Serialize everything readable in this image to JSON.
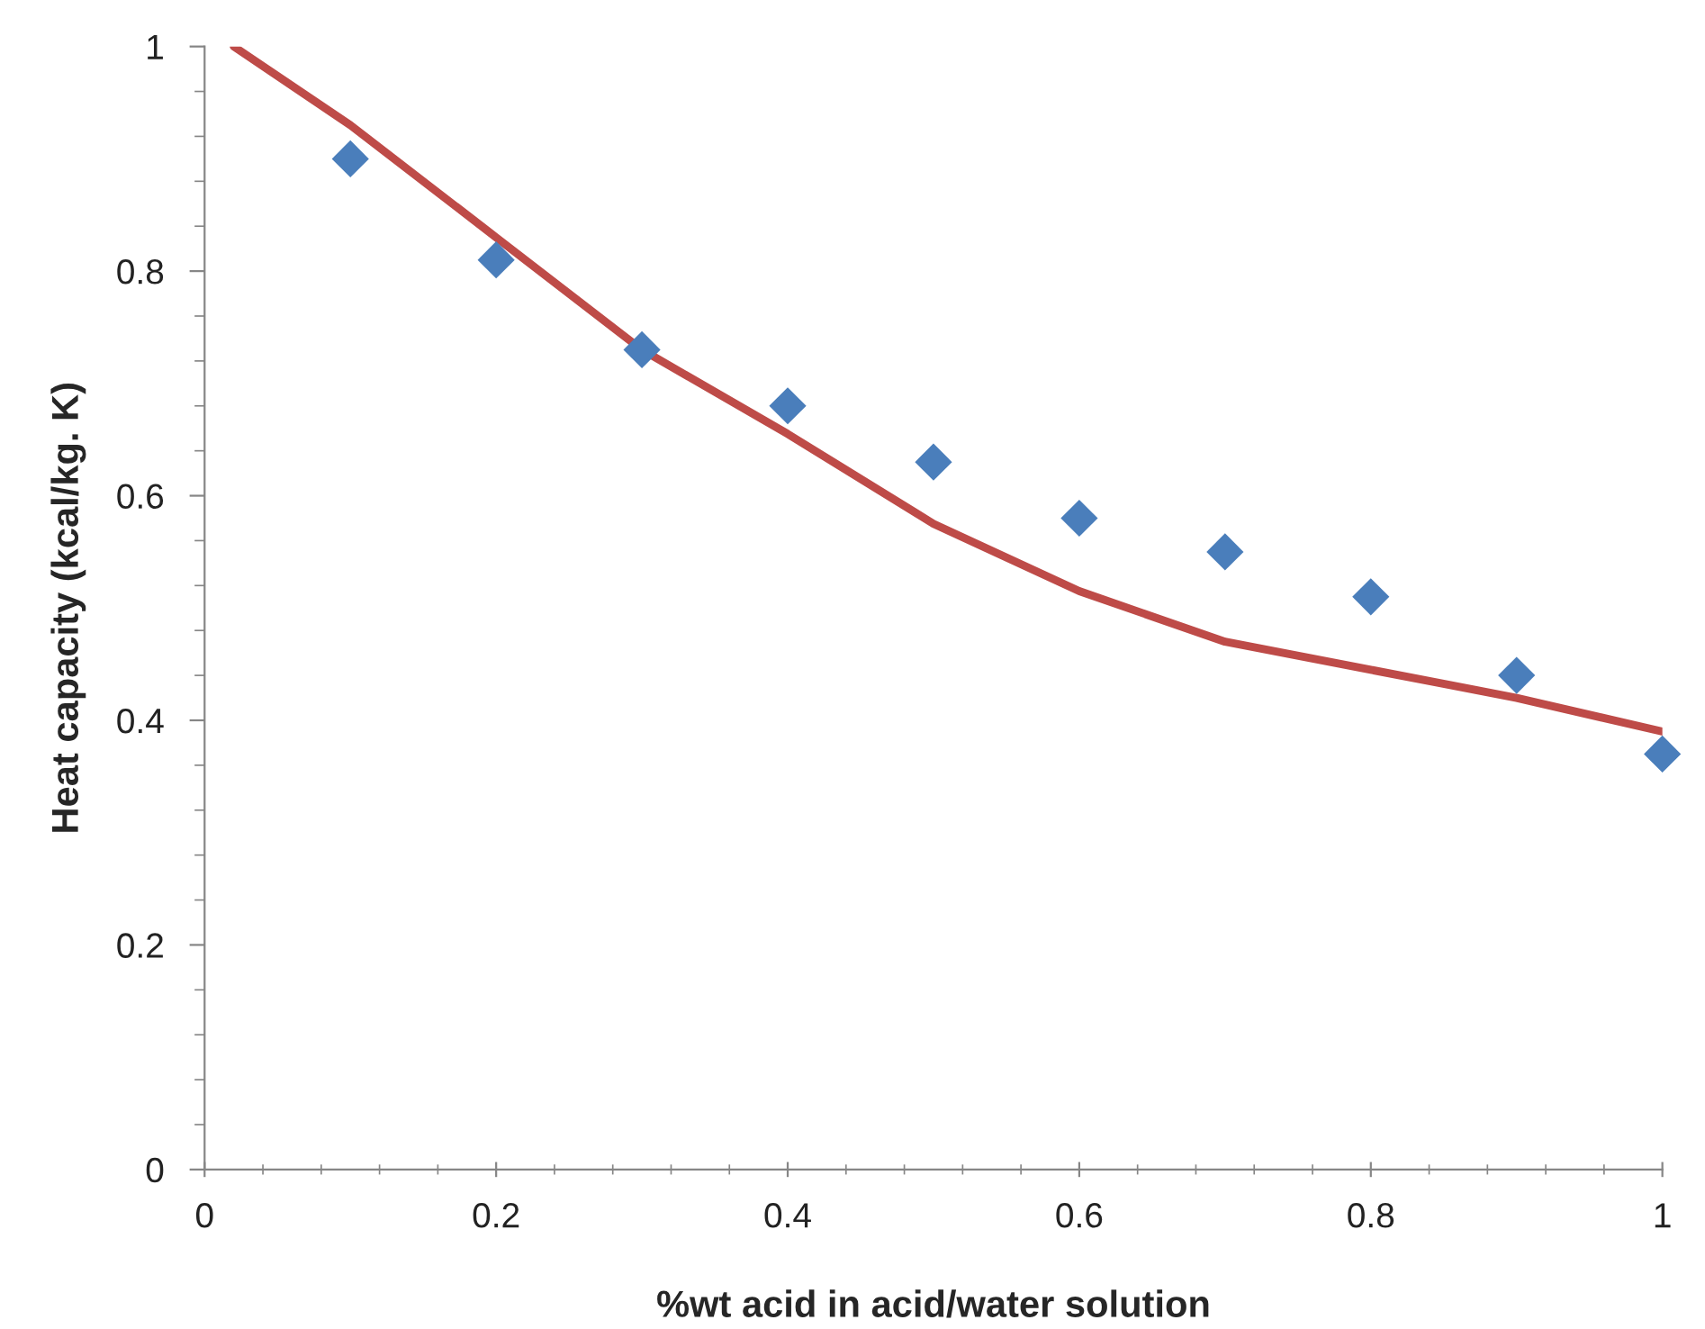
{
  "chart_data": {
    "type": "scatter",
    "xlabel": "%wt acid in acid/water solution",
    "ylabel": "Heat capacity (kcal/kg. K)",
    "series": [
      {
        "color": "#4a7ebb",
        "marker": "diamond",
        "x": [
          0.1,
          0.2,
          0.3,
          0.4,
          0.5,
          0.6,
          0.7,
          0.8,
          0.9,
          1.0
        ],
        "values": [
          0.9,
          0.81,
          0.73,
          0.68,
          0.63,
          0.58,
          0.55,
          0.51,
          0.44,
          0.37
        ]
      },
      {
        "type": "line",
        "color": "#be4b48",
        "marker": "none",
        "line_style": "solid",
        "x": [
          0.02,
          0.1,
          0.2,
          0.3,
          0.4,
          0.5,
          0.6,
          0.7,
          0.8,
          0.9,
          1.0
        ],
        "values": [
          1.0,
          0.93,
          0.83,
          0.73,
          0.655,
          0.575,
          0.515,
          0.47,
          0.445,
          0.42,
          0.39
        ]
      }
    ],
    "xlim": [
      0,
      1
    ],
    "ylim": [
      0,
      1
    ],
    "xticks": [
      {
        "value": 0,
        "label": "0"
      },
      {
        "value": 0.04,
        "label": null
      },
      {
        "value": 0.08,
        "label": null
      },
      {
        "value": 0.12,
        "label": null
      },
      {
        "value": 0.16,
        "label": null
      },
      {
        "value": 0.2,
        "label": "0.2"
      },
      {
        "value": 0.24,
        "label": null
      },
      {
        "value": 0.28,
        "label": null
      },
      {
        "value": 0.32,
        "label": null
      },
      {
        "value": 0.36,
        "label": null
      },
      {
        "value": 0.4,
        "label": "0.4"
      },
      {
        "value": 0.44,
        "label": null
      },
      {
        "value": 0.48,
        "label": null
      },
      {
        "value": 0.52,
        "label": null
      },
      {
        "value": 0.56,
        "label": null
      },
      {
        "value": 0.6,
        "label": "0.6"
      },
      {
        "value": 0.64,
        "label": null
      },
      {
        "value": 0.68,
        "label": null
      },
      {
        "value": 0.72,
        "label": null
      },
      {
        "value": 0.76,
        "label": null
      },
      {
        "value": 0.8,
        "label": "0.8"
      },
      {
        "value": 0.84,
        "label": null
      },
      {
        "value": 0.88,
        "label": null
      },
      {
        "value": 0.92,
        "label": null
      },
      {
        "value": 0.96,
        "label": null
      },
      {
        "value": 1,
        "label": "1"
      }
    ],
    "yticks": [
      {
        "value": 0,
        "label": "0"
      },
      {
        "value": 0.04,
        "label": null
      },
      {
        "value": 0.08,
        "label": null
      },
      {
        "value": 0.12,
        "label": null
      },
      {
        "value": 0.16,
        "label": null
      },
      {
        "value": 0.2,
        "label": "0.2"
      },
      {
        "value": 0.24,
        "label": null
      },
      {
        "value": 0.28,
        "label": null
      },
      {
        "value": 0.32,
        "label": null
      },
      {
        "value": 0.36,
        "label": null
      },
      {
        "value": 0.4,
        "label": "0.4"
      },
      {
        "value": 0.44,
        "label": null
      },
      {
        "value": 0.48,
        "label": null
      },
      {
        "value": 0.52,
        "label": null
      },
      {
        "value": 0.56,
        "label": null
      },
      {
        "value": 0.6,
        "label": "0.6"
      },
      {
        "value": 0.64,
        "label": null
      },
      {
        "value": 0.68,
        "label": null
      },
      {
        "value": 0.72,
        "label": null
      },
      {
        "value": 0.76,
        "label": null
      },
      {
        "value": 0.8,
        "label": "0.8"
      },
      {
        "value": 0.84,
        "label": null
      },
      {
        "value": 0.88,
        "label": null
      },
      {
        "value": 0.92,
        "label": null
      },
      {
        "value": 0.96,
        "label": null
      },
      {
        "value": 1,
        "label": "1"
      }
    ],
    "grid": false,
    "legend": false
  }
}
